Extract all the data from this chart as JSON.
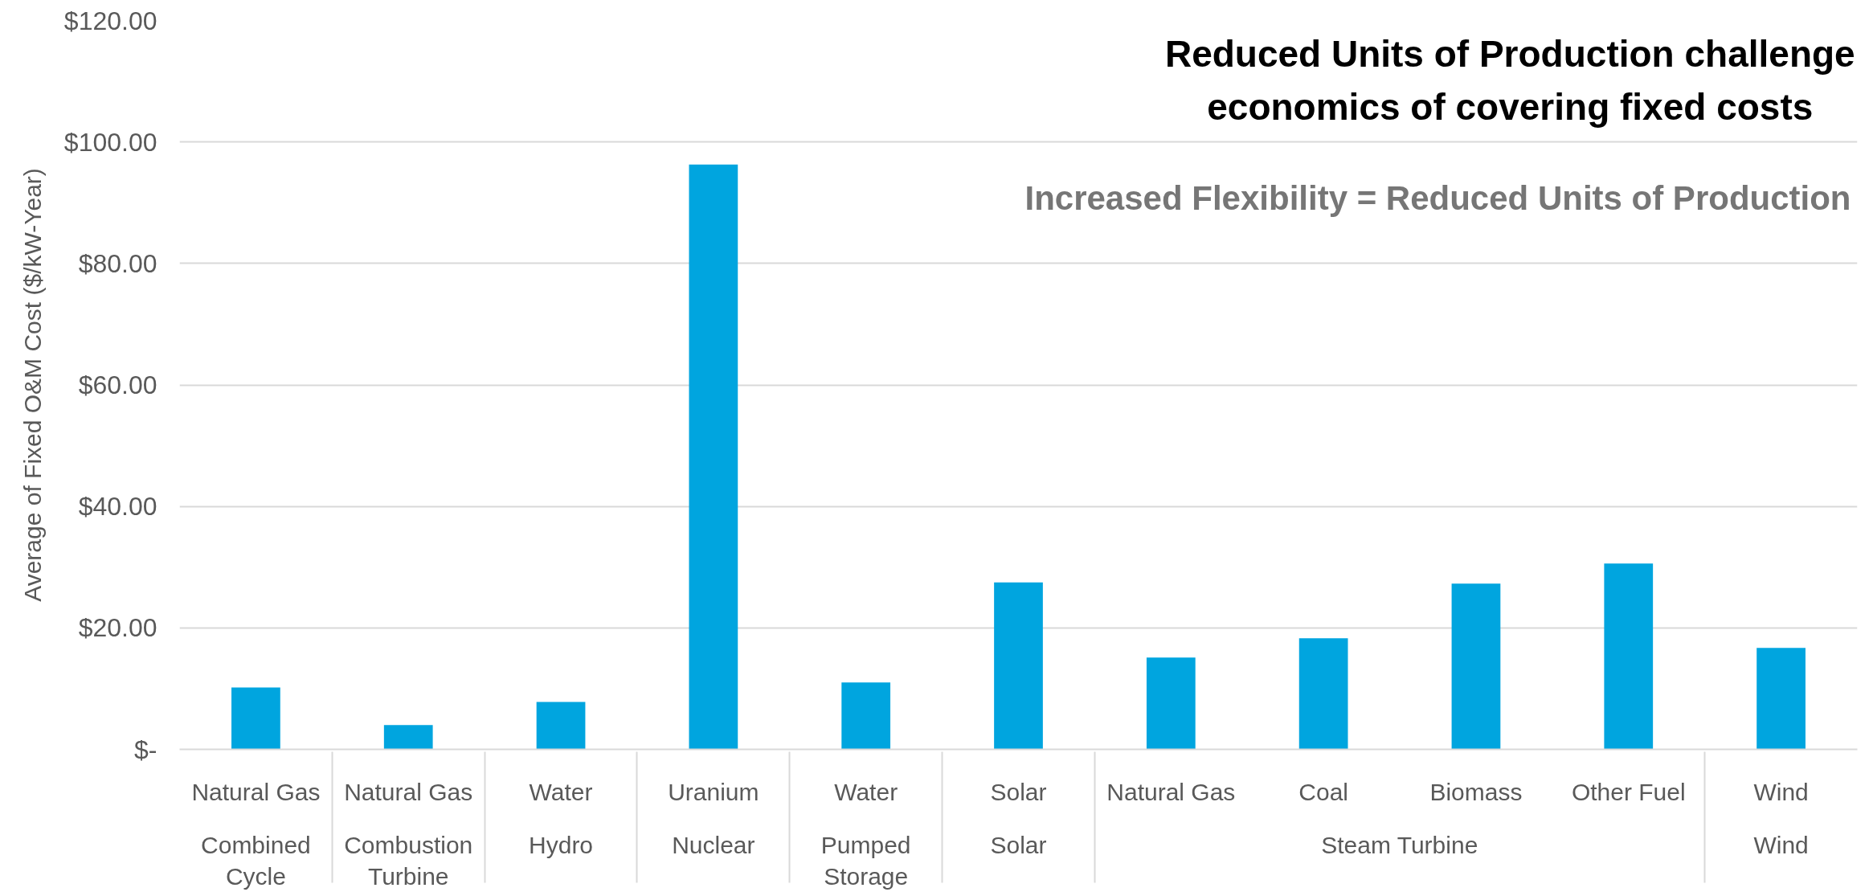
{
  "chart_data": {
    "type": "bar",
    "title": "Reduced Units of Production challenge economics of covering fixed costs",
    "subtitle": "Increased Flexibility = Reduced Units of Production",
    "ylabel": "Average of Fixed O&M Cost ($/kW-Year)",
    "categories": [
      [
        "Natural Gas",
        "Combined Cycle"
      ],
      [
        "Natural Gas",
        "Combustion Turbine"
      ],
      [
        "Water",
        "Hydro"
      ],
      [
        "Uranium",
        "Nuclear"
      ],
      [
        "Water",
        "Pumped Storage"
      ],
      [
        "Solar",
        "Solar"
      ],
      [
        "Natural Gas",
        "Steam Turbine"
      ],
      [
        "Coal",
        null
      ],
      [
        "Biomass",
        null
      ],
      [
        "Other Fuel",
        null
      ],
      [
        "Wind",
        "Wind"
      ]
    ],
    "values": [
      10.2,
      4.0,
      7.8,
      96.3,
      11.0,
      27.5,
      15.1,
      18.3,
      27.3,
      30.6,
      16.7
    ],
    "color": "#00a5df",
    "ylim": [
      0,
      120
    ],
    "yticks": [
      {
        "value": 0,
        "label": "$-"
      },
      {
        "value": 20,
        "label": "$20.00"
      },
      {
        "value": 40,
        "label": "$40.00"
      },
      {
        "value": 60,
        "label": "$60.00"
      },
      {
        "value": 80,
        "label": "$80.00"
      },
      {
        "value": 100,
        "label": "$100.00"
      },
      {
        "value": 120,
        "label": "$120.00"
      }
    ],
    "grid": "y"
  }
}
